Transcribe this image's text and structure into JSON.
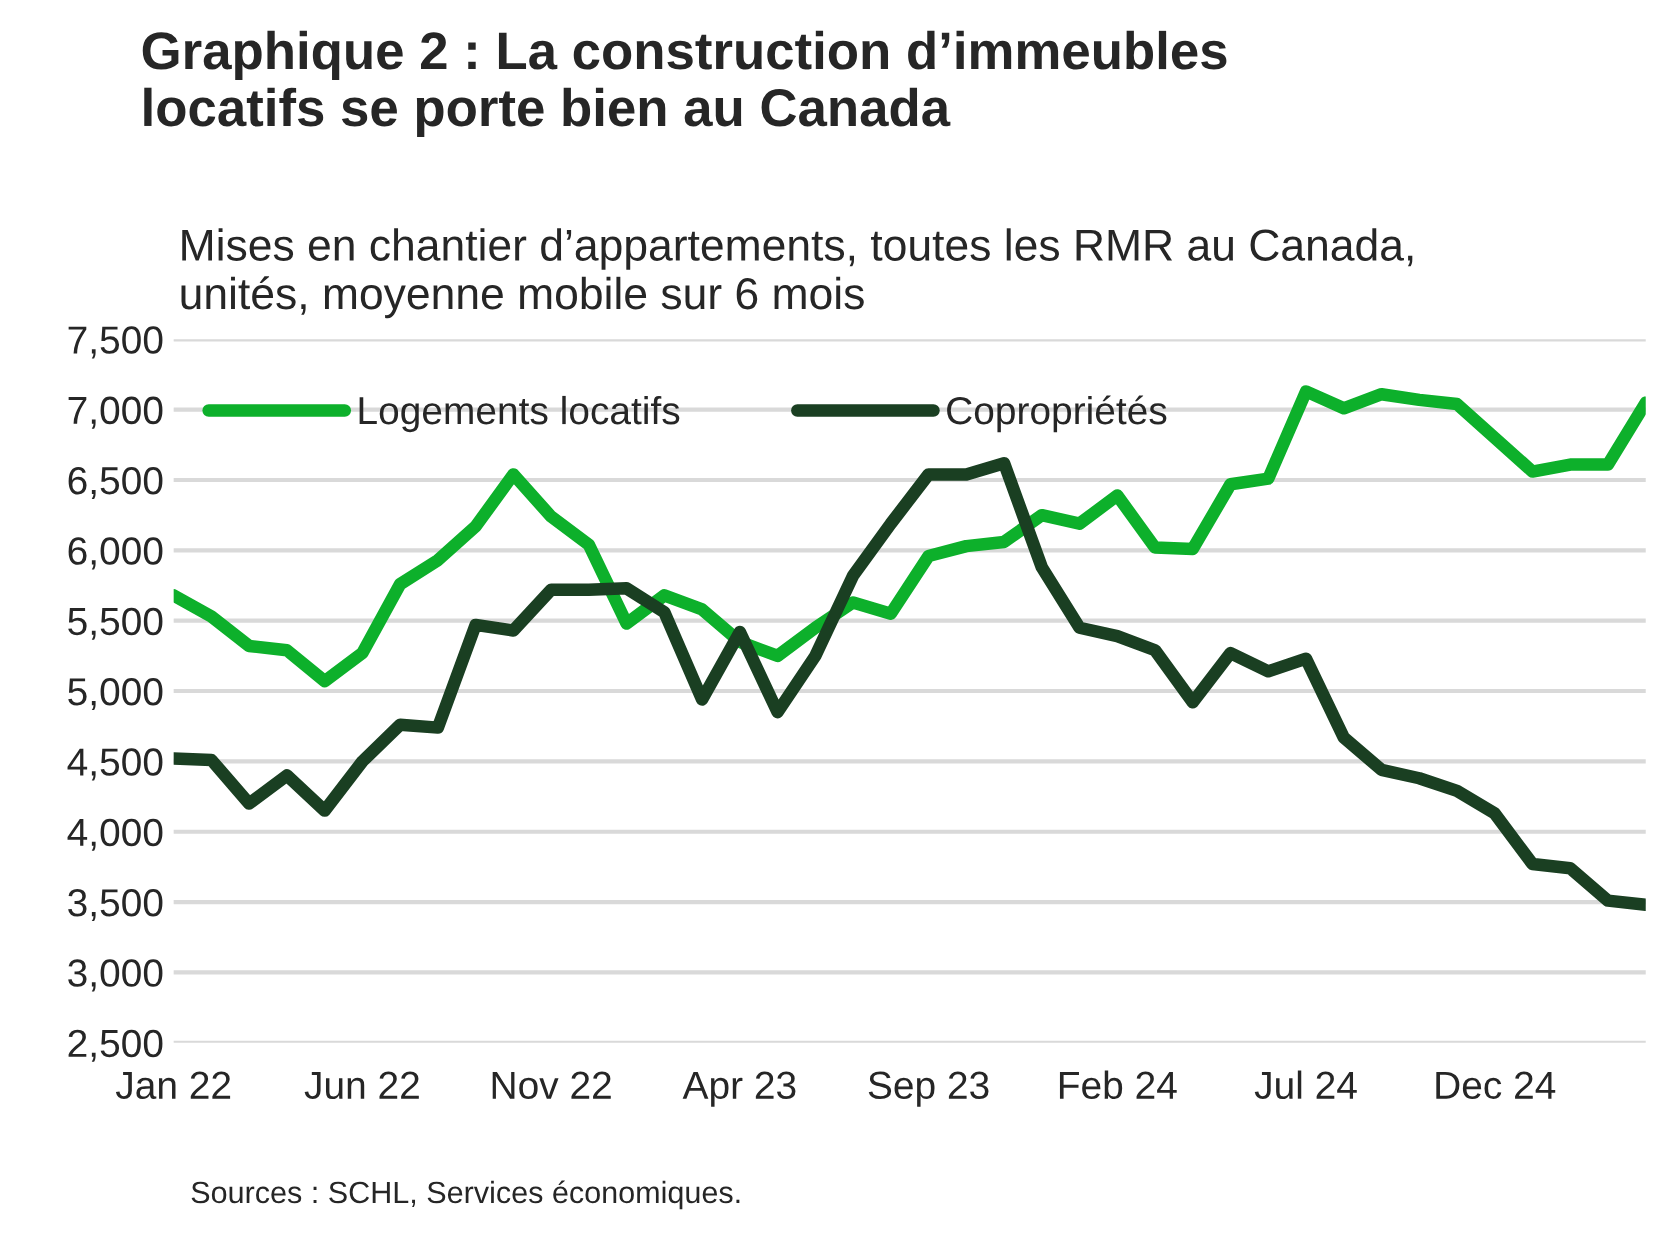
{
  "chart_data": {
    "type": "line",
    "title": "Graphique 2 : La construction d’immeubles\nlocatifs se porte bien au Canada",
    "subtitle": "Mises en chantier d’appartements, toutes les RMR au Canada,\nunités, moyenne mobile sur 6 mois",
    "categories": [
      "Jan 22",
      null,
      null,
      null,
      null,
      "Jun 22",
      null,
      null,
      null,
      null,
      "Nov 22",
      null,
      null,
      null,
      null,
      "Apr 23",
      null,
      null,
      null,
      null,
      "Sep 23",
      null,
      null,
      null,
      null,
      "Feb 24",
      null,
      null,
      null,
      null,
      "Jul 24",
      null,
      null,
      null,
      null,
      "Dec 24",
      null,
      null,
      null,
      null
    ],
    "series": [
      {
        "name": "Logements locatifs",
        "color": "#0db02b",
        "values": [
          5680,
          5530,
          5320,
          5290,
          5070,
          5270,
          5760,
          5930,
          6170,
          6540,
          6240,
          6040,
          5480,
          5680,
          5580,
          5350,
          5250,
          5450,
          5630,
          5550,
          5960,
          6030,
          6060,
          6250,
          6190,
          6390,
          6020,
          6010,
          6470,
          6510,
          7130,
          7010,
          7110,
          7070,
          7040,
          6800,
          6560,
          6610,
          6610,
          7050
        ]
      },
      {
        "name": "Copropriétés",
        "color": "#1a3f22",
        "values": [
          4520,
          4510,
          4200,
          4400,
          4150,
          4500,
          4760,
          4740,
          5470,
          5430,
          5720,
          5720,
          5730,
          5560,
          4940,
          5420,
          4850,
          5250,
          5820,
          6190,
          6540,
          6540,
          6620,
          5880,
          5450,
          5390,
          5290,
          4920,
          5270,
          5140,
          5230,
          4670,
          4440,
          4380,
          4290,
          4130,
          3770,
          3740,
          3510,
          3480
        ]
      }
    ],
    "ylim": [
      2500,
      7500
    ],
    "yticks": [
      {
        "value": 2500,
        "label": "2,500"
      },
      {
        "value": 3000,
        "label": "3,000"
      },
      {
        "value": 3500,
        "label": "3,500"
      },
      {
        "value": 4000,
        "label": "4,000"
      },
      {
        "value": 4500,
        "label": "4,500"
      },
      {
        "value": 5000,
        "label": "5,000"
      },
      {
        "value": 5500,
        "label": "5,500"
      },
      {
        "value": 6000,
        "label": "6,000"
      },
      {
        "value": 6500,
        "label": "6,500"
      },
      {
        "value": 7000,
        "label": "7,000"
      },
      {
        "value": 7500,
        "label": "7,500"
      }
    ],
    "grid": "y",
    "legend": "top left",
    "annotations": [
      "Sources : SCHL, Services économiques."
    ]
  }
}
